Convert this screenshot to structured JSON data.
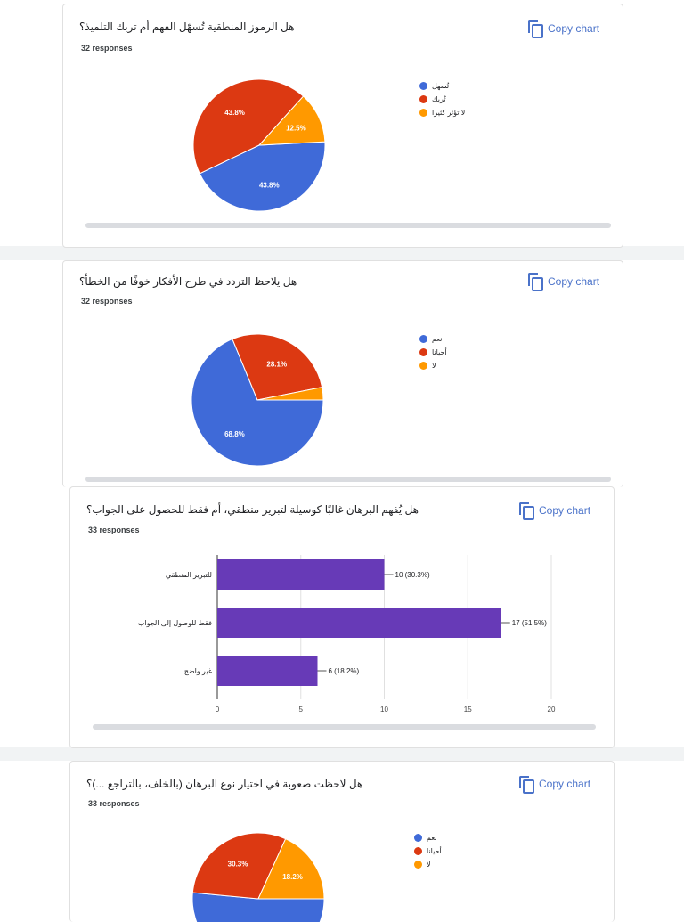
{
  "colors": {
    "blue": "#3f6ad8",
    "red": "#dc3912",
    "orange": "#ff9900",
    "purple": "#673ab7",
    "link": "#4a72c9"
  },
  "copy_label": "Copy chart",
  "cards": [
    {
      "title": "هل الرموز المنطقية تُسهّل الفهم أم تربك التلميذ؟",
      "responses": "32 responses",
      "chart_data": {
        "type": "pie",
        "labels": [
          "تُسهل",
          "تُربك",
          "لا تؤثر كثيرا"
        ],
        "values": [
          43.8,
          43.8,
          12.5
        ],
        "value_labels": [
          "43.8%",
          "43.8%",
          "12.5%"
        ]
      }
    },
    {
      "title": "هل يلاحظ التردد في طرح الأفكار خوفًا من الخطأ؟",
      "responses": "32 responses",
      "chart_data": {
        "type": "pie",
        "labels": [
          "نعم",
          "أحيانا",
          "لا"
        ],
        "values": [
          68.8,
          28.1,
          3.1
        ],
        "value_labels": [
          "68.8%",
          "28.1%",
          ""
        ]
      }
    },
    {
      "title": "هل يُفهم البرهان غالبًا كوسيلة لتبرير منطقي، أم فقط للحصول على الجواب؟",
      "responses": "33 responses",
      "chart_data": {
        "type": "bar",
        "orientation": "horizontal",
        "categories": [
          "للتبرير المنطقي",
          "فقط للوصول إلى الجواب",
          "غير واضح"
        ],
        "values": [
          10,
          17,
          6
        ],
        "value_labels": [
          "10 (30.3%)",
          "17 (51.5%)",
          "6 (18.2%)"
        ],
        "xlim": [
          0,
          20
        ],
        "xticks": [
          0,
          5,
          10,
          15,
          20
        ],
        "grid": true
      }
    },
    {
      "title": "هل لاحظت صعوبة في اختيار نوع البرهان (بالخلف، بالتراجع ...)؟",
      "responses": "33 responses",
      "chart_data": {
        "type": "pie",
        "labels": [
          "نعم",
          "أحيانا",
          "لا"
        ],
        "values": [
          51.5,
          30.3,
          18.2
        ],
        "value_labels": [
          "",
          "30.3%",
          "18.2%"
        ]
      }
    }
  ]
}
